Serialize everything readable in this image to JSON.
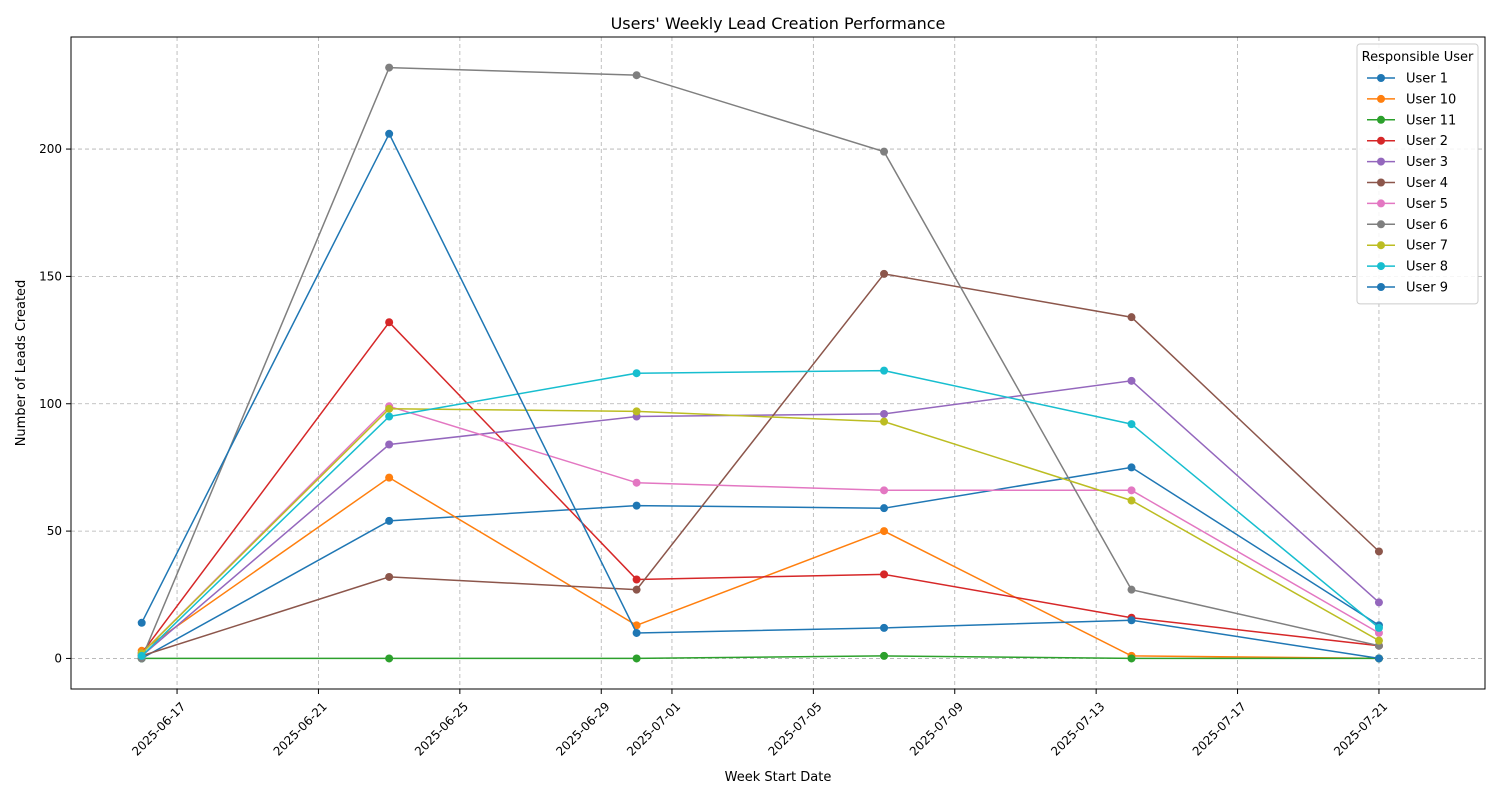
{
  "chart_data": {
    "type": "line",
    "title": "Users' Weekly Lead Creation Performance",
    "xlabel": "Week Start Date",
    "ylabel": "Number of Leads Created",
    "x": [
      "2025-06-16",
      "2025-06-23",
      "2025-06-30",
      "2025-07-07",
      "2025-07-14",
      "2025-07-21"
    ],
    "xlim": [
      "2025-06-14",
      "2025-07-24"
    ],
    "ylim": [
      -12,
      244
    ],
    "x_ticks": [
      "2025-06-17",
      "2025-06-21",
      "2025-06-25",
      "2025-06-29",
      "2025-07-01",
      "2025-07-05",
      "2025-07-09",
      "2025-07-13",
      "2025-07-17",
      "2025-07-21"
    ],
    "y_ticks": [
      0,
      50,
      100,
      150,
      200
    ],
    "grid": true,
    "legend": {
      "title": "Responsible User",
      "placement": "top-right"
    },
    "series": [
      {
        "name": "User 1",
        "color": "#1f77b4",
        "values": [
          0,
          54,
          60,
          59,
          75,
          13
        ]
      },
      {
        "name": "User 10",
        "color": "#ff7f0e",
        "values": [
          3,
          71,
          13,
          50,
          1,
          0
        ]
      },
      {
        "name": "User 11",
        "color": "#2ca02c",
        "values": [
          0,
          0,
          0,
          1,
          0,
          0
        ]
      },
      {
        "name": "User 2",
        "color": "#d62728",
        "values": [
          2,
          132,
          31,
          33,
          16,
          5
        ]
      },
      {
        "name": "User 3",
        "color": "#9467bd",
        "values": [
          1,
          84,
          95,
          96,
          109,
          22
        ]
      },
      {
        "name": "User 4",
        "color": "#8c564b",
        "values": [
          1,
          32,
          27,
          151,
          134,
          42
        ]
      },
      {
        "name": "User 5",
        "color": "#e377c2",
        "values": [
          2,
          99,
          69,
          66,
          66,
          10
        ]
      },
      {
        "name": "User 6",
        "color": "#7f7f7f",
        "values": [
          0,
          232,
          229,
          199,
          27,
          5
        ]
      },
      {
        "name": "User 7",
        "color": "#bcbd22",
        "values": [
          2,
          98,
          97,
          93,
          62,
          7
        ]
      },
      {
        "name": "User 8",
        "color": "#17becf",
        "values": [
          1,
          95,
          112,
          113,
          92,
          12
        ]
      },
      {
        "name": "User 9",
        "color": "#1f77b4",
        "values": [
          14,
          206,
          10,
          12,
          15,
          0
        ]
      }
    ]
  }
}
